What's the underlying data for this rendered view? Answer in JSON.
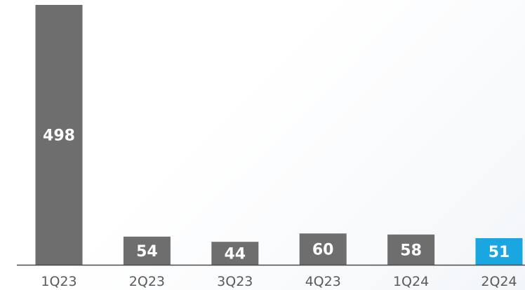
{
  "chart_data": {
    "type": "bar",
    "categories": [
      "1Q23",
      "2Q23",
      "3Q23",
      "4Q23",
      "1Q24",
      "2Q24"
    ],
    "values": [
      498,
      54,
      44,
      60,
      58,
      51
    ],
    "data_labels": [
      "498",
      "54",
      "44",
      "60",
      "58",
      "51"
    ],
    "title": "",
    "xlabel": "",
    "ylabel": "",
    "ylim": [
      0,
      498
    ],
    "grid": false,
    "legend": "none",
    "highlight_category": "2Q24"
  },
  "colors": {
    "bar": "#6e6e6e",
    "highlight_bar": "#1aa6e0",
    "highlight_tick": "#1aa6e0",
    "tick": "#5a5a5a",
    "axis": "#4a4a4a",
    "label": "#ffffff"
  }
}
